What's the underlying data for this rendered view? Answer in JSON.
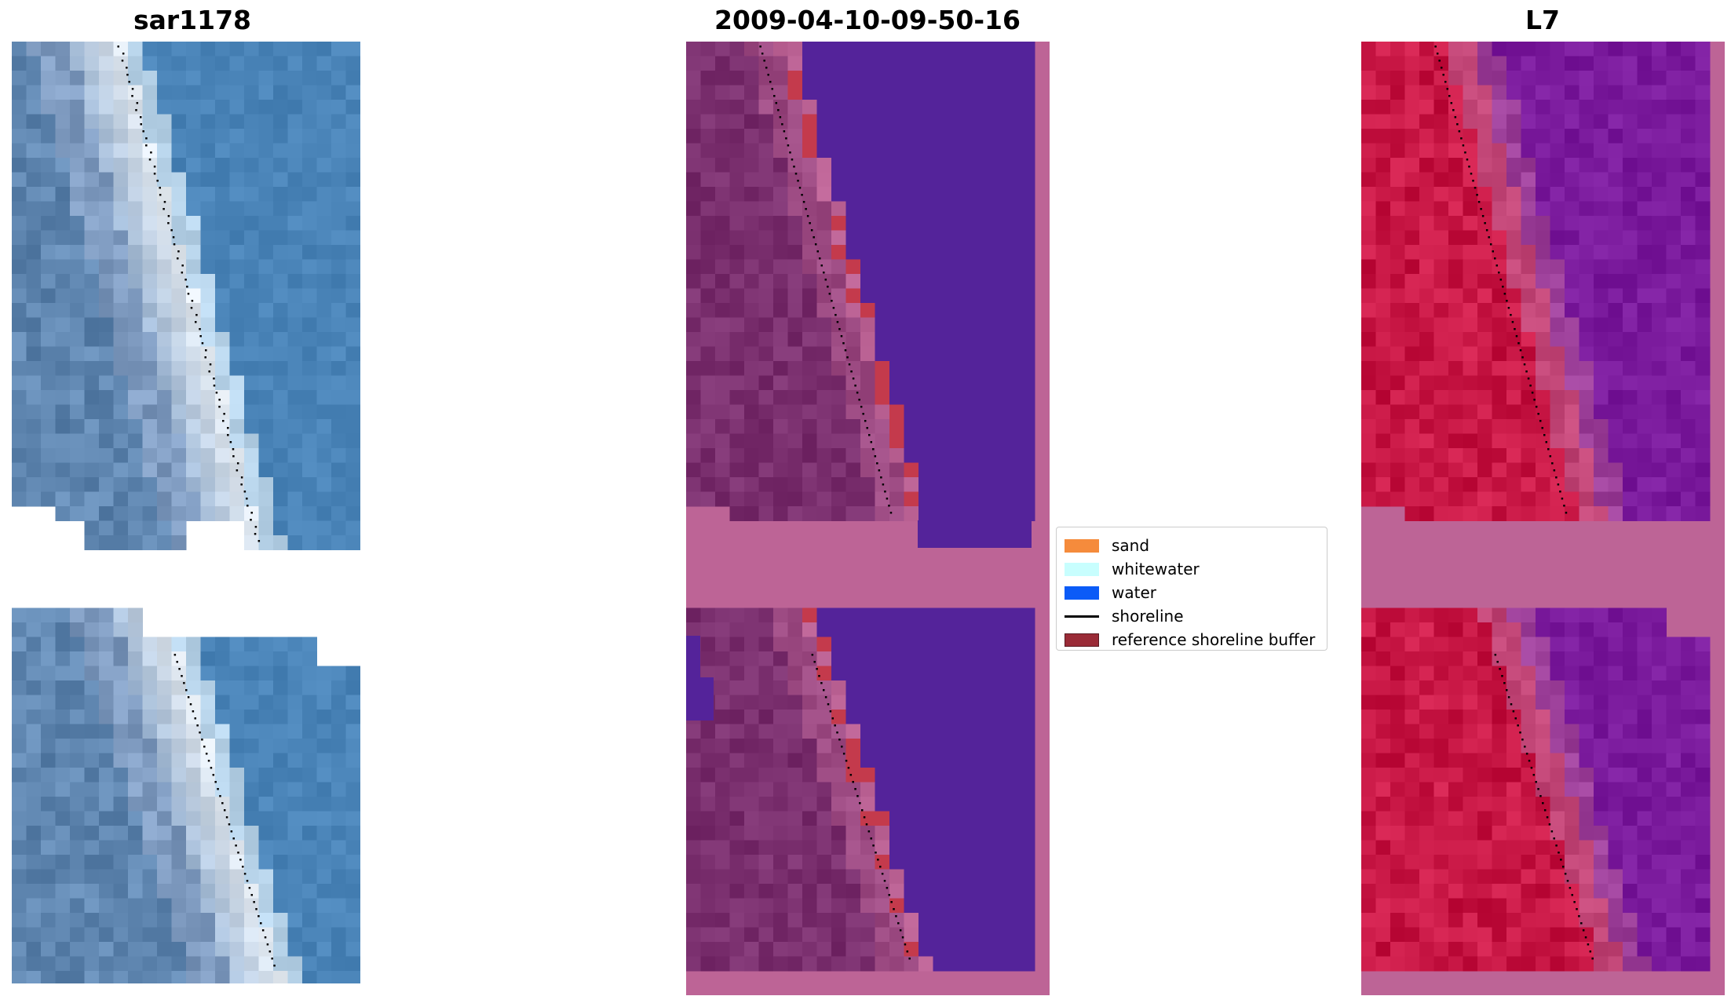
{
  "panels": [
    {
      "title": "sar1178",
      "style": "rgb"
    },
    {
      "title": "2009-04-10-09-50-16",
      "style": "classified"
    },
    {
      "title": "L7",
      "style": "falsecolor"
    }
  ],
  "legend": [
    {
      "label": "sand",
      "color": "#f58b3c",
      "icon": "patch"
    },
    {
      "label": "whitewater",
      "color": "#c8fefe",
      "icon": "patch"
    },
    {
      "label": "water",
      "color": "#0b5bf7",
      "icon": "patch"
    },
    {
      "label": "shoreline",
      "color": "#000000",
      "icon": "line"
    },
    {
      "label": "reference shoreline buffer",
      "color": "#9a2b37",
      "icon": "patch"
    }
  ],
  "colors": {
    "rgb_water": "#4a84b8",
    "rgb_beach": "#e6ecf2",
    "classified_water": "#54239a",
    "classified_land": "#7a2f6e",
    "classified_mask": "#bd6496",
    "classified_buffer": "#c43a4c",
    "false_land": "#c81745",
    "false_water": "#7a1a9c",
    "false_mask": "#bd6496"
  }
}
